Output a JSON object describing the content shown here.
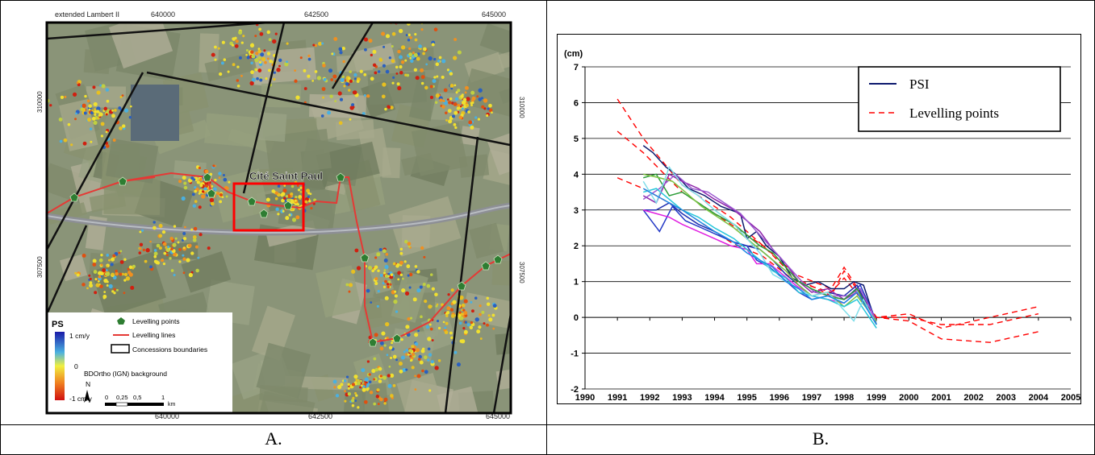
{
  "panels": {
    "left_caption": "A.",
    "right_caption": "B."
  },
  "map": {
    "projection_label": "extended Lambert II",
    "x_ticks": [
      "640000",
      "642500",
      "645000"
    ],
    "y_ticks": [
      "310000",
      "307500"
    ],
    "place_label": "Cité Saint Paul",
    "legend": {
      "ps_title": "PS",
      "scale_top": "1 cm/y",
      "scale_mid": "0",
      "scale_bottom": "-1 cm/y",
      "levelling_points": "Levelling points",
      "levelling_lines": "Levelling lines",
      "concessions": "Concessions boundaries",
      "background": "BDOrtho (IGN) background",
      "north": "N",
      "scalebar": [
        "0",
        "0,25",
        "0,5",
        "1"
      ],
      "scalebar_unit": "km"
    },
    "colors": {
      "levelling_point": "#2e7d32",
      "levelling_line": "#e53935",
      "highlight_box": "#ff0000"
    }
  },
  "chart_data": {
    "type": "line",
    "ylabel": "(cm)",
    "xlim": [
      1990,
      2005
    ],
    "ylim": [
      -2,
      7
    ],
    "x_ticks": [
      "1990",
      "1991",
      "1992",
      "1993",
      "1994",
      "1995",
      "1996",
      "1997",
      "1998",
      "1999",
      "2000",
      "2001",
      "2002",
      "2003",
      "2004",
      "2005"
    ],
    "y_ticks": [
      "-2",
      "-1",
      "0",
      "1",
      "2",
      "3",
      "4",
      "5",
      "6",
      "7"
    ],
    "grid": "horizontal",
    "legend_position": "top-right",
    "legend": [
      {
        "label": "PSI",
        "color": "#0d1a6e",
        "dash": "solid"
      },
      {
        "label": "Levelling points",
        "color": "#ff0000",
        "dash": "dashed"
      }
    ],
    "psi_series": [
      {
        "color": "#0d1a6e",
        "x": [
          1991.8,
          1992.1,
          1992.5,
          1992.8,
          1993.2,
          1993.7,
          1994.2,
          1994.8,
          1995.0,
          1995.3,
          1995.6,
          1996.0,
          1996.4,
          1996.8,
          1997.2,
          1997.6,
          1998.0,
          1998.3,
          1998.6,
          1999.0
        ],
        "y": [
          4.8,
          4.6,
          4.2,
          4.0,
          3.6,
          3.4,
          3.1,
          2.9,
          2.2,
          2.4,
          2.0,
          1.7,
          1.1,
          0.9,
          1.0,
          0.8,
          0.8,
          1.0,
          0.9,
          -0.2
        ]
      },
      {
        "color": "#1f2fb0",
        "x": [
          1991.8,
          1992.2,
          1992.6,
          1993.0,
          1993.5,
          1994.0,
          1994.6,
          1995.0,
          1995.4,
          1995.8,
          1996.2,
          1996.6,
          1997.0,
          1997.5,
          1998.0,
          1998.4,
          1999.0
        ],
        "y": [
          3.0,
          3.0,
          3.2,
          2.9,
          2.6,
          2.4,
          2.1,
          2.0,
          1.9,
          1.6,
          1.2,
          0.9,
          0.6,
          0.7,
          0.6,
          0.9,
          -0.2
        ]
      },
      {
        "color": "#2439c6",
        "x": [
          1991.8,
          1992.3,
          1992.7,
          1993.1,
          1993.6,
          1994.1,
          1994.6,
          1995.0,
          1995.3,
          1995.7,
          1996.1,
          1996.6,
          1997.0,
          1997.5,
          1998.0,
          1998.5,
          1999.0
        ],
        "y": [
          3.0,
          2.4,
          3.1,
          2.7,
          2.5,
          2.3,
          2.1,
          2.0,
          1.6,
          1.4,
          1.1,
          0.7,
          0.5,
          0.6,
          0.5,
          0.9,
          -0.1
        ]
      },
      {
        "color": "#8e24aa",
        "x": [
          1991.8,
          1992.2,
          1992.6,
          1993.0,
          1993.5,
          1994.0,
          1994.6,
          1995.0,
          1995.4,
          1995.8,
          1996.2,
          1996.6,
          1997.0,
          1997.5,
          1998.0,
          1998.4,
          1999.0
        ],
        "y": [
          3.4,
          3.2,
          4.0,
          3.8,
          3.6,
          3.3,
          3.0,
          2.7,
          2.4,
          1.9,
          1.5,
          1.0,
          0.7,
          0.8,
          0.5,
          0.7,
          -0.2
        ]
      },
      {
        "color": "#9b59d0",
        "x": [
          1991.8,
          1992.3,
          1992.8,
          1993.3,
          1993.8,
          1994.3,
          1994.8,
          1995.1,
          1995.5,
          1995.9,
          1996.3,
          1996.7,
          1997.1,
          1997.6,
          1998.1,
          1998.5,
          1999.0
        ],
        "y": [
          3.3,
          3.6,
          4.0,
          3.6,
          3.5,
          3.2,
          2.9,
          2.6,
          2.2,
          1.8,
          1.4,
          1.0,
          0.7,
          0.6,
          0.6,
          0.8,
          -0.1
        ]
      },
      {
        "color": "#e020e0",
        "x": [
          1991.8,
          1992.2,
          1992.6,
          1993.0,
          1993.5,
          1994.0,
          1994.5,
          1995.0,
          1995.3,
          1995.7,
          1996.1,
          1996.5,
          1997.0,
          1997.5,
          1998.0,
          1998.4,
          1999.0
        ],
        "y": [
          3.0,
          2.9,
          2.8,
          2.6,
          2.4,
          2.2,
          2.0,
          1.9,
          1.5,
          1.5,
          1.2,
          0.9,
          0.6,
          0.5,
          0.4,
          0.7,
          -0.1
        ]
      },
      {
        "color": "#2e9e3a",
        "x": [
          1991.8,
          1992.2,
          1992.6,
          1993.0,
          1993.5,
          1994.0,
          1994.6,
          1995.0,
          1995.4,
          1995.8,
          1996.2,
          1996.6,
          1997.0,
          1997.5,
          1998.0,
          1998.4,
          1999.0
        ],
        "y": [
          3.9,
          4.0,
          3.4,
          3.5,
          3.2,
          2.9,
          2.6,
          2.3,
          2.0,
          1.8,
          1.4,
          1.0,
          0.8,
          0.6,
          0.5,
          0.8,
          -0.2
        ]
      },
      {
        "color": "#7cc242",
        "x": [
          1991.8,
          1992.3,
          1992.7,
          1993.1,
          1993.6,
          1994.1,
          1994.6,
          1995.0,
          1995.4,
          1995.8,
          1996.2,
          1996.6,
          1997.0,
          1997.5,
          1998.0,
          1998.4,
          1999.0
        ],
        "y": [
          4.0,
          3.9,
          3.8,
          3.5,
          3.1,
          2.8,
          2.5,
          2.2,
          1.9,
          1.6,
          1.3,
          0.9,
          0.6,
          0.7,
          0.3,
          0.6,
          -0.1
        ]
      },
      {
        "color": "#26c6da",
        "x": [
          1991.8,
          1992.2,
          1992.6,
          1993.0,
          1993.5,
          1994.0,
          1994.6,
          1995.0,
          1995.4,
          1995.8,
          1996.2,
          1996.6,
          1997.0,
          1997.5,
          1998.0,
          1998.4,
          1999.0
        ],
        "y": [
          3.5,
          3.6,
          3.3,
          3.0,
          2.8,
          2.5,
          2.2,
          1.9,
          1.6,
          1.3,
          1.1,
          0.7,
          0.6,
          0.5,
          0.3,
          0.5,
          -0.3
        ]
      },
      {
        "color": "#80deea",
        "x": [
          1991.8,
          1992.2,
          1992.6,
          1993.0,
          1993.5,
          1994.0,
          1994.6,
          1995.0,
          1995.4,
          1995.8,
          1996.2,
          1996.6,
          1997.0,
          1997.5,
          1998.0,
          1998.3,
          1998.6,
          1999.0
        ],
        "y": [
          3.8,
          3.2,
          4.2,
          3.7,
          3.4,
          3.0,
          2.6,
          2.2,
          1.8,
          1.2,
          1.0,
          0.8,
          0.6,
          0.7,
          0.2,
          -0.1,
          0.5,
          -0.2
        ]
      },
      {
        "color": "#1e88e5",
        "x": [
          1991.8,
          1992.2,
          1992.6,
          1993.0,
          1993.5,
          1994.0,
          1994.6,
          1995.0,
          1995.4,
          1995.8,
          1996.2,
          1996.6,
          1997.0,
          1997.5,
          1998.0,
          1998.4,
          1999.0
        ],
        "y": [
          3.6,
          3.4,
          3.2,
          3.0,
          2.7,
          2.4,
          2.1,
          1.8,
          1.6,
          1.4,
          1.0,
          0.8,
          0.5,
          0.6,
          0.4,
          0.7,
          -0.2
        ]
      }
    ],
    "levelling_series": [
      {
        "color": "#ff0000",
        "x": [
          1991.0,
          1991.8,
          1993.0,
          1994.5,
          1995.5,
          1996.5,
          1997.6,
          1998.0,
          1999.0,
          2000.0,
          2001.0,
          2002.5,
          2004.0
        ],
        "y": [
          6.1,
          5.0,
          3.7,
          2.8,
          2.0,
          1.1,
          0.6,
          1.3,
          0.0,
          -0.1,
          -0.6,
          -0.7,
          -0.4
        ]
      },
      {
        "color": "#ff0000",
        "x": [
          1991.0,
          1991.8,
          1993.0,
          1994.5,
          1995.5,
          1996.5,
          1997.6,
          1998.0,
          1999.0,
          2000.0,
          2001.0,
          2002.5,
          2004.0
        ],
        "y": [
          5.2,
          4.6,
          3.5,
          2.6,
          2.0,
          1.2,
          0.8,
          1.4,
          0.0,
          0.0,
          -0.2,
          -0.2,
          0.1
        ]
      },
      {
        "color": "#ff0000",
        "x": [
          1991.0,
          1991.8,
          1993.0,
          1994.5,
          1995.5,
          1996.5,
          1997.6,
          1998.0,
          1999.0,
          2000.0,
          2001.0,
          2002.5,
          2004.0
        ],
        "y": [
          3.9,
          3.6,
          3.0,
          2.1,
          1.7,
          1.0,
          0.7,
          1.1,
          0.0,
          0.1,
          -0.3,
          0.0,
          0.3
        ]
      }
    ]
  }
}
